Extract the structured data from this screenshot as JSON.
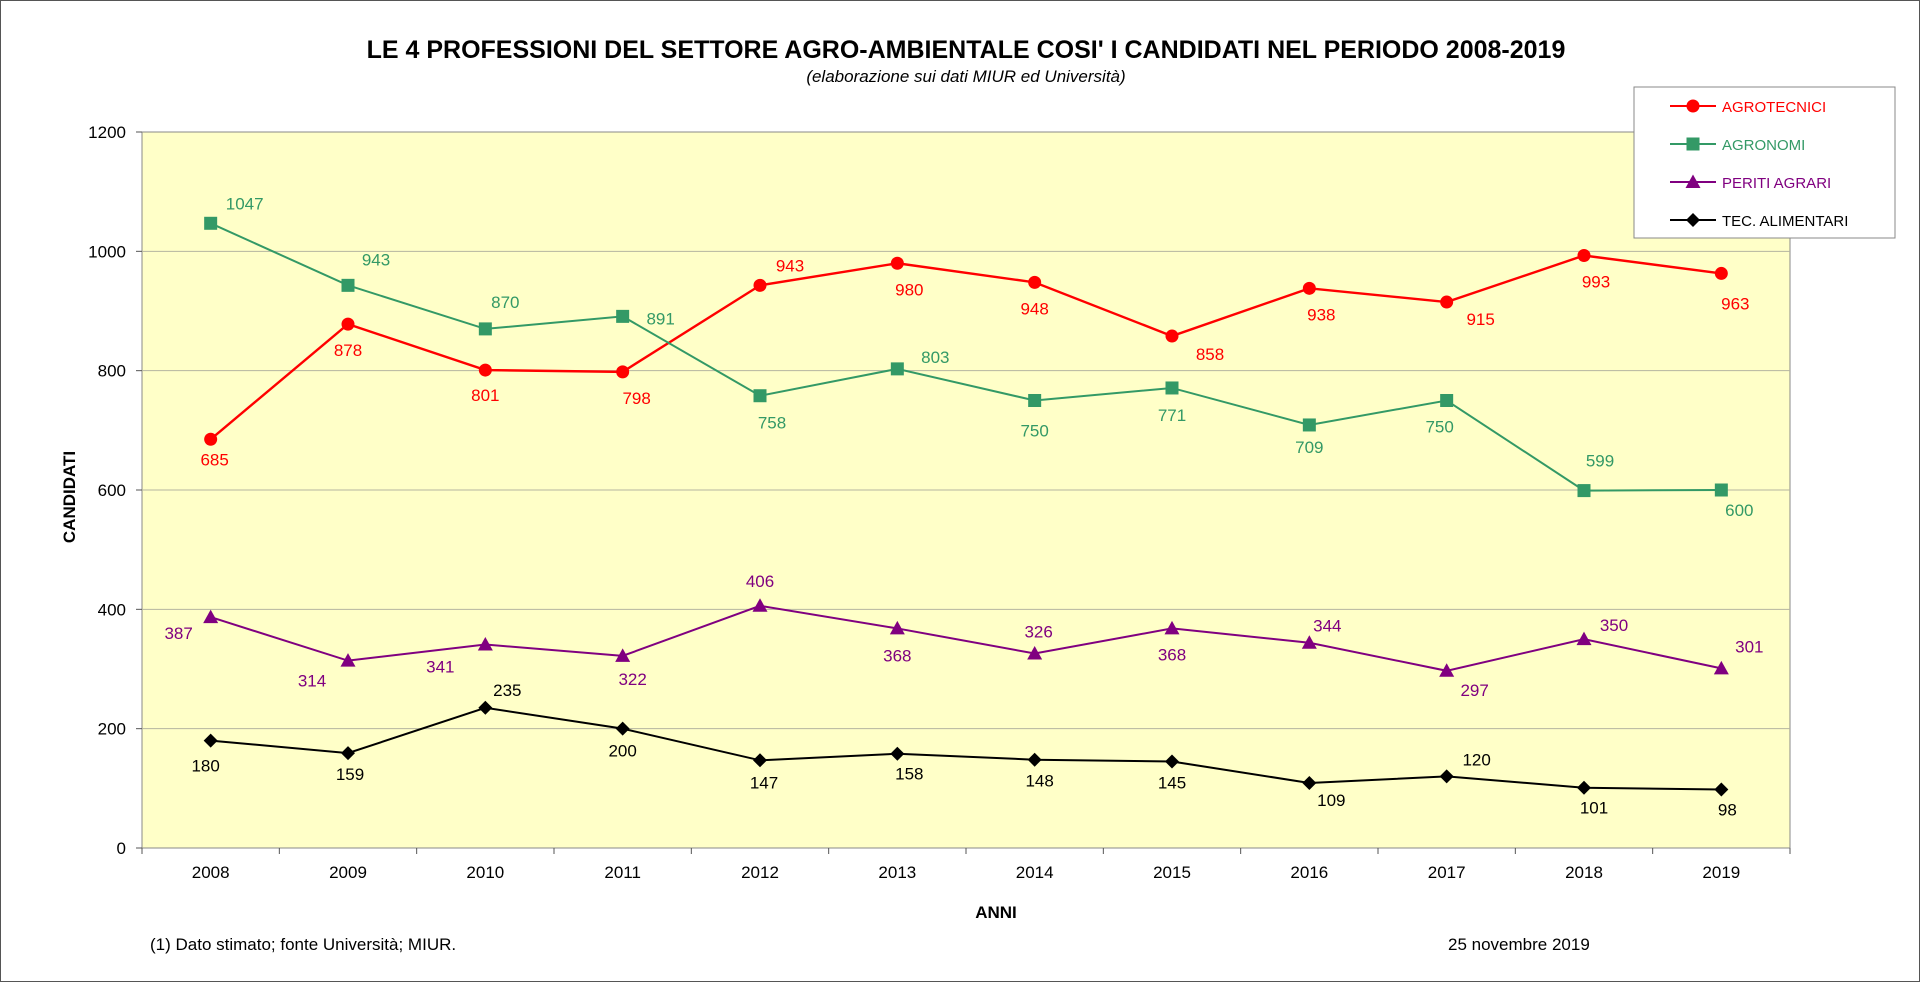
{
  "chart_data": {
    "type": "line",
    "title": "LE 4  PROFESSIONI DEL SETTORE AGRO-AMBIENTALE COSI' I CANDIDATI NEL PERIODO 2008-2019",
    "subtitle": "(elaborazione sui dati MIUR ed Università)",
    "xlabel": "ANNI",
    "ylabel": "CANDIDATI",
    "ylim": [
      0,
      1200
    ],
    "yticks": [
      "0",
      "200",
      "400",
      "600",
      "800",
      "1000",
      "1200"
    ],
    "grid": true,
    "legend_position": "top-right",
    "categories": [
      "2008",
      "2009",
      "2010",
      "2011",
      "2012",
      "2013",
      "2014",
      "2015",
      "2016",
      "2017",
      "2018",
      "2019"
    ],
    "series": [
      {
        "name": "AGROTECNICI",
        "color": "#ff0000",
        "marker": "circle",
        "values": [
          685,
          878,
          801,
          798,
          943,
          980,
          948,
          858,
          938,
          915,
          993,
          963
        ],
        "labels": [
          "685",
          "878",
          "801",
          "798",
          "943",
          "980",
          "948",
          "858",
          "938",
          "915",
          "993",
          "963"
        ]
      },
      {
        "name": "AGRONOMI",
        "color": "#339966",
        "marker": "square",
        "values": [
          1047,
          943,
          870,
          891,
          758,
          803,
          750,
          771,
          709,
          750,
          599,
          600
        ],
        "labels": [
          "1047",
          "943",
          "870",
          "891",
          "758",
          "803",
          "750",
          "771",
          "709",
          "750",
          "599",
          "600"
        ]
      },
      {
        "name": "PERITI AGRARI",
        "color": "#800080",
        "marker": "triangle",
        "values": [
          387,
          314,
          341,
          322,
          406,
          368,
          326,
          368,
          344,
          297,
          350,
          301
        ],
        "labels": [
          "387",
          "314",
          "341",
          "322",
          "406",
          "368",
          "326",
          "368",
          "344",
          "297",
          "350",
          "301"
        ]
      },
      {
        "name": "TEC. ALIMENTARI",
        "color": "#000000",
        "marker": "diamond",
        "values": [
          180,
          159,
          235,
          200,
          147,
          158,
          148,
          145,
          109,
          120,
          101,
          98
        ],
        "labels": [
          "180",
          "159",
          "235",
          "200",
          "147",
          "158",
          "148",
          "145",
          "109",
          "120",
          "101",
          "98"
        ]
      }
    ],
    "footnote": "(1) Dato stimato; fonte Università; MIUR.",
    "date": "25 novembre 2019",
    "plot_background": "#ffffc8"
  }
}
